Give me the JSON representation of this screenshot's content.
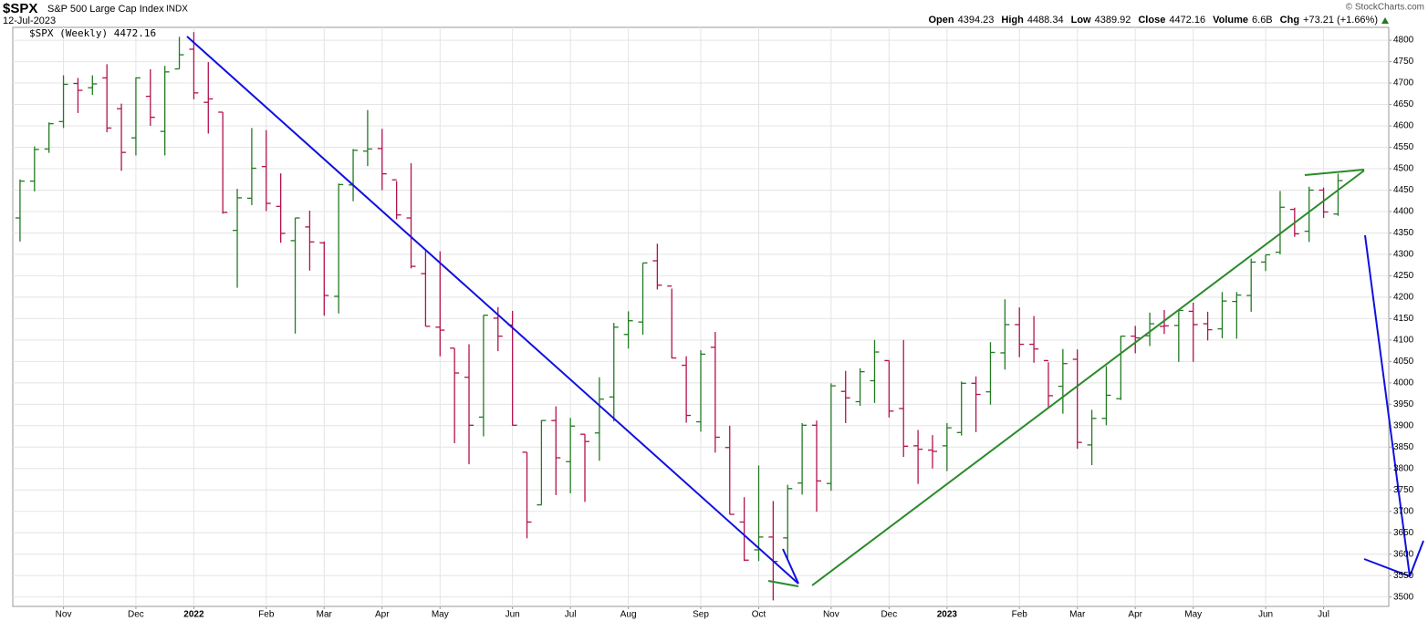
{
  "header": {
    "symbol": "$SPX",
    "name": "S&P 500 Large Cap Index",
    "exchange": "INDX",
    "date": "12-Jul-2023",
    "credit": "© StockCharts.com",
    "quote": [
      {
        "label": "Open",
        "value": "4394.23"
      },
      {
        "label": "High",
        "value": "4488.34"
      },
      {
        "label": "Low",
        "value": "4389.92"
      },
      {
        "label": "Close",
        "value": "4472.16"
      },
      {
        "label": "Volume",
        "value": "6.6B"
      },
      {
        "label": "Chg",
        "value": "+73.21 (+1.66%)"
      }
    ]
  },
  "chart_data": {
    "type": "ohlc",
    "legend": "$SPX (Weekly) 4472.16",
    "up_color": "#237a23",
    "down_color": "#b3124e",
    "open": [
      4385,
      4471,
      4546,
      4610,
      4699,
      4689,
      4712,
      4640,
      4572,
      4669,
      4587,
      4733,
      4779,
      4655,
      4632,
      4356,
      4431,
      4505,
      4412,
      4332,
      4364,
      4327,
      4202,
      4462,
      4541,
      4547,
      4474,
      4385,
      4255,
      4130,
      4081,
      4013,
      3920,
      4151,
      4135,
      3838,
      3715,
      3912,
      3816,
      3880,
      3883,
      3967,
      4113,
      4142,
      4285,
      4226,
      4041,
      3909,
      4083,
      3849,
      3675,
      3610,
      3640,
      3638,
      3766,
      3901,
      3765,
      3980,
      3956,
      4005,
      4052,
      3940,
      3853,
      3843,
      3853,
      3884,
      3999,
      3979,
      4070,
      4136,
      4090,
      4052,
      3992,
      4055,
      3855,
      3917,
      3963,
      4109,
      4110,
      4132,
      4134,
      4167,
      4138,
      4126,
      4190,
      4204,
      4282,
      4305,
      4405,
      4354,
      4450,
      4394.23
    ],
    "high": [
      4475,
      4552,
      4608,
      4718,
      4712,
      4718,
      4744,
      4652,
      4713,
      4732,
      4740,
      4808,
      4819,
      4749,
      4632,
      4453,
      4595,
      4590,
      4489,
      4385,
      4402,
      4330,
      4465,
      4546,
      4637,
      4593,
      4471,
      4513,
      4308,
      4307,
      4081,
      4090,
      4158,
      4177,
      4168,
      3838,
      3913,
      3945,
      3918,
      3880,
      4013,
      4140,
      4167,
      4280,
      4325,
      4220,
      4062,
      4076,
      4119,
      3900,
      3733,
      3807,
      3724,
      3762,
      3906,
      3912,
      3999,
      4028,
      4034,
      4100,
      4052,
      4100,
      3890,
      3878,
      3906,
      4003,
      4015,
      4095,
      4195,
      4176,
      4156,
      4048,
      4079,
      4078,
      3937,
      4039,
      4110,
      4133,
      4164,
      4170,
      4170,
      4187,
      4166,
      4212,
      4212,
      4290,
      4299,
      4448,
      4409,
      4458,
      4456,
      4488.34
    ],
    "low": [
      4330,
      4447,
      4537,
      4595,
      4630,
      4672,
      4585,
      4495,
      4531,
      4600,
      4531,
      4733,
      4662,
      4582,
      4395,
      4222,
      4415,
      4401,
      4327,
      4115,
      4262,
      4157,
      4162,
      4424,
      4506,
      4450,
      4382,
      4267,
      4132,
      4062,
      3859,
      3810,
      3875,
      4074,
      3900,
      3637,
      3715,
      3738,
      3742,
      3722,
      3818,
      3910,
      4080,
      4112,
      4218,
      4057,
      3907,
      3886,
      3837,
      3693,
      3584,
      3584,
      3492,
      3590,
      3739,
      3699,
      3748,
      3906,
      3946,
      3953,
      3919,
      3827,
      3764,
      3800,
      3794,
      3877,
      3885,
      3949,
      4031,
      4060,
      4047,
      3943,
      3928,
      3846,
      3808,
      3901,
      3960,
      4069,
      4086,
      4114,
      4049,
      4049,
      4099,
      4104,
      4103,
      4166,
      4261,
      4300,
      4341,
      4329,
      4385,
      4389.92
    ],
    "close": [
      4471,
      4545,
      4605,
      4697,
      4683,
      4698,
      4595,
      4538,
      4712,
      4620,
      4726,
      4766,
      4677,
      4663,
      4398,
      4432,
      4501,
      4419,
      4349,
      4385,
      4329,
      4204,
      4463,
      4543,
      4546,
      4488,
      4392,
      4272,
      4132,
      4123,
      4023,
      3901,
      4158,
      4109,
      3901,
      3675,
      3912,
      3825,
      3899,
      3863,
      3962,
      4130,
      4145,
      4280,
      4228,
      4058,
      3924,
      4067,
      3873,
      3693,
      3586,
      3640,
      3583,
      3753,
      3901,
      3771,
      3993,
      3965,
      4026,
      4072,
      3934,
      3852,
      3845,
      3840,
      3895,
      3999,
      3973,
      4071,
      4136,
      4090,
      4079,
      3970,
      4045,
      3861,
      3917,
      3971,
      4109,
      4105,
      4138,
      4133,
      4169,
      4136,
      4124,
      4191,
      4205,
      4282,
      4299,
      4410,
      4348,
      4450,
      4399,
      4472.16
    ],
    "xlim": [
      -0.5,
      94.5
    ],
    "xticks": [
      {
        "value": 3,
        "label": "Nov"
      },
      {
        "value": 8,
        "label": "Dec"
      },
      {
        "value": 12,
        "label": "2022"
      },
      {
        "value": 17,
        "label": "Feb"
      },
      {
        "value": 21,
        "label": "Mar"
      },
      {
        "value": 25,
        "label": "Apr"
      },
      {
        "value": 29,
        "label": "May"
      },
      {
        "value": 34,
        "label": "Jun"
      },
      {
        "value": 38,
        "label": "Jul"
      },
      {
        "value": 42,
        "label": "Aug"
      },
      {
        "value": 47,
        "label": "Sep"
      },
      {
        "value": 51,
        "label": "Oct"
      },
      {
        "value": 56,
        "label": "Nov"
      },
      {
        "value": 60,
        "label": "Dec"
      },
      {
        "value": 64,
        "label": "2023"
      },
      {
        "value": 69,
        "label": "Feb"
      },
      {
        "value": 73,
        "label": "Mar"
      },
      {
        "value": 77,
        "label": "Apr"
      },
      {
        "value": 81,
        "label": "May"
      },
      {
        "value": 86,
        "label": "Jun"
      },
      {
        "value": 90,
        "label": "Jul"
      }
    ],
    "ylim": [
      3478,
      4830
    ],
    "yticks": [
      3500,
      3550,
      3600,
      3650,
      3700,
      3750,
      3800,
      3850,
      3900,
      3950,
      4000,
      4050,
      4100,
      4150,
      4200,
      4250,
      4300,
      4350,
      4400,
      4450,
      4500,
      4550,
      4600,
      4650,
      4700,
      4750,
      4800
    ],
    "grid": true
  }
}
